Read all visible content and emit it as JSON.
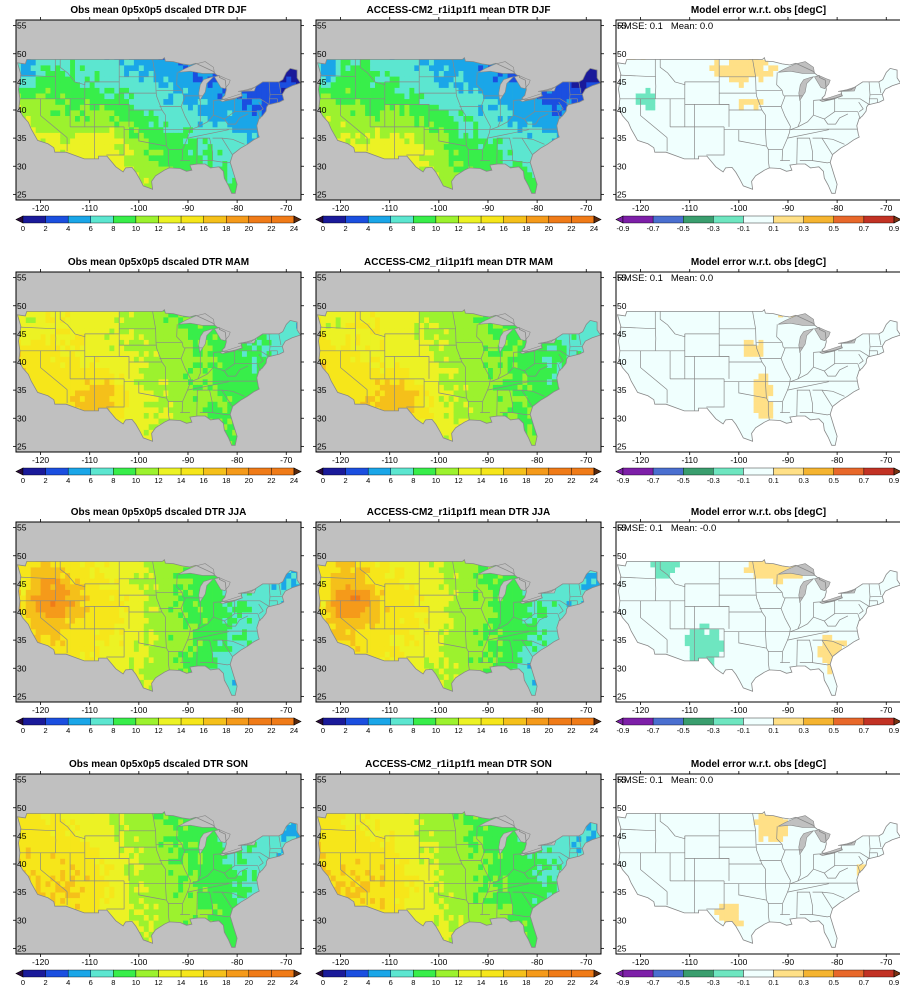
{
  "panels": [
    {
      "title": "Obs mean 0p5x0p5 dscaled DTR DJF",
      "kind": "dtr",
      "season": "DJF"
    },
    {
      "title": "ACCESS-CM2_r1i1p1f1 mean DTR DJF",
      "kind": "dtr",
      "season": "DJF"
    },
    {
      "title": "Model error w.r.t. obs [degC]",
      "kind": "err",
      "season": "DJF",
      "stats": "RMSE: 0.1   Mean: 0.0"
    },
    {
      "title": "Obs mean 0p5x0p5 dscaled DTR MAM",
      "kind": "dtr",
      "season": "MAM"
    },
    {
      "title": "ACCESS-CM2_r1i1p1f1 mean DTR MAM",
      "kind": "dtr",
      "season": "MAM"
    },
    {
      "title": "Model error w.r.t. obs [degC]",
      "kind": "err",
      "season": "MAM",
      "stats": "RMSE: 0.1   Mean: 0.0"
    },
    {
      "title": "Obs mean 0p5x0p5 dscaled DTR JJA",
      "kind": "dtr",
      "season": "JJA"
    },
    {
      "title": "ACCESS-CM2_r1i1p1f1 mean DTR JJA",
      "kind": "dtr",
      "season": "JJA"
    },
    {
      "title": "Model error w.r.t. obs [degC]",
      "kind": "err",
      "season": "JJA",
      "stats": "RMSE: 0.1   Mean: -0.0"
    },
    {
      "title": "Obs mean 0p5x0p5 dscaled DTR SON",
      "kind": "dtr",
      "season": "SON"
    },
    {
      "title": "ACCESS-CM2_r1i1p1f1 mean DTR SON",
      "kind": "dtr",
      "season": "SON"
    },
    {
      "title": "Model error w.r.t. obs [degC]",
      "kind": "err",
      "season": "SON",
      "stats": "RMSE: 0.1   Mean: 0.0"
    }
  ],
  "map_extent": {
    "lon_min": -125,
    "lon_max": -67,
    "lat_min": 24,
    "lat_max": 56
  },
  "x_ticks": [
    -120,
    -110,
    -100,
    -90,
    -80,
    -70
  ],
  "y_ticks": [
    25,
    30,
    35,
    40,
    45,
    50,
    55
  ],
  "dtr_scale": {
    "ticks": [
      "0",
      "2",
      "4",
      "6",
      "8",
      "10",
      "12",
      "14",
      "16",
      "18",
      "20",
      "22",
      "24"
    ],
    "colors": [
      "#2a0a3c",
      "#1a1a9a",
      "#1b4fe0",
      "#1aa6e8",
      "#5ce6d0",
      "#38ee4a",
      "#9cf22e",
      "#ecf224",
      "#f6e61a",
      "#f5c01a",
      "#f59a1a",
      "#f07b18",
      "#5a2a10"
    ]
  },
  "err_scale": {
    "ticks": [
      "-0.9",
      "-0.7",
      "-0.5",
      "-0.3",
      "-0.1",
      "0.1",
      "0.3",
      "0.5",
      "0.7",
      "0.9"
    ],
    "colors": [
      "#7d1fa8",
      "#4a6fd0",
      "#3a9e6e",
      "#6ee6c0",
      "#f0fffe",
      "#ffe087",
      "#f5b430",
      "#e8682a",
      "#c23224",
      "#7a3414"
    ]
  },
  "colors": {
    "land_missing": "#c0c0c0",
    "border": "#888888",
    "frame": "#000000"
  }
}
